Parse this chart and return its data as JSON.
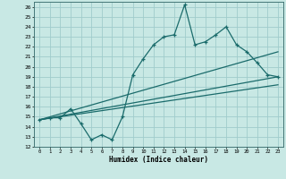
{
  "xlabel": "Humidex (Indice chaleur)",
  "xlim": [
    -0.5,
    23.5
  ],
  "ylim": [
    12,
    26.5
  ],
  "yticks": [
    12,
    13,
    14,
    15,
    16,
    17,
    18,
    19,
    20,
    21,
    22,
    23,
    24,
    25,
    26
  ],
  "xticks": [
    0,
    1,
    2,
    3,
    4,
    5,
    6,
    7,
    8,
    9,
    10,
    11,
    12,
    13,
    14,
    15,
    16,
    17,
    18,
    19,
    20,
    21,
    22,
    23
  ],
  "bg_color": "#c8e8e4",
  "grid_color": "#a0cccc",
  "line_color": "#1a6b6b",
  "line1_x": [
    0,
    1,
    2,
    3,
    4,
    5,
    6,
    7,
    8,
    9,
    10,
    11,
    12,
    13,
    14,
    15,
    16,
    17,
    18,
    19,
    20,
    21,
    22,
    23
  ],
  "line1_y": [
    14.7,
    14.9,
    14.9,
    15.8,
    14.3,
    12.7,
    13.2,
    12.7,
    15.0,
    19.2,
    20.8,
    22.2,
    23.0,
    23.2,
    26.2,
    22.2,
    22.5,
    23.2,
    24.0,
    22.2,
    21.5,
    20.4,
    19.2,
    19.0
  ],
  "line2_x": [
    0,
    23
  ],
  "line2_y": [
    14.7,
    19.0
  ],
  "line3_x": [
    0,
    23
  ],
  "line3_y": [
    14.7,
    18.2
  ],
  "line4_x": [
    0,
    23
  ],
  "line4_y": [
    14.7,
    21.5
  ]
}
